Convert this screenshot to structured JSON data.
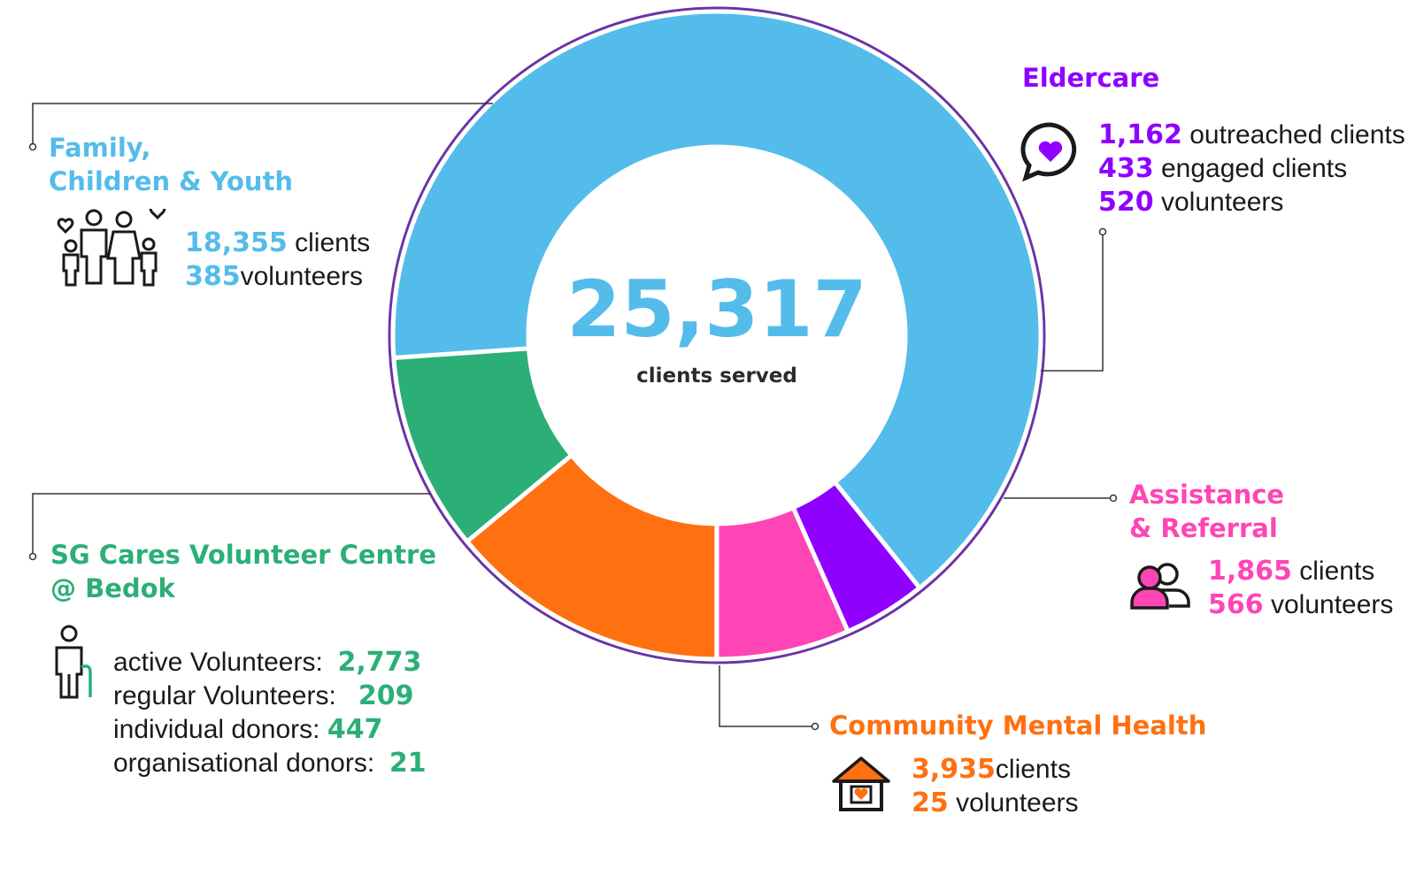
{
  "colors": {
    "family": "#53BCEA",
    "eldercare": "#8F00FF",
    "assistance": "#FF45B5",
    "mental": "#FF7010",
    "sgcares": "#2BAF77",
    "ring": "#6A34A6",
    "leader": "#333333"
  },
  "chart_data": {
    "type": "pie",
    "style": "donut",
    "center": {
      "value": "25,317",
      "label": "clients served"
    },
    "categories": [
      "Family, Children & Youth",
      "Eldercare",
      "Assistance & Referral",
      "Community Mental Health",
      "SG Cares Volunteer Centre @ Bedok"
    ],
    "values": [
      18355,
      1162,
      1865,
      3935,
      2773
    ],
    "colors": [
      "#53BCEA",
      "#8F00FF",
      "#FF45B5",
      "#FF7010",
      "#2BAF77"
    ]
  },
  "segments": {
    "family": {
      "title_line1": "Family,",
      "title_line2": "Children & Youth",
      "clients_num": "18,355",
      "clients_label": "clients",
      "volunteers_num": "385",
      "volunteers_label": "volunteers",
      "icon": "family-icon"
    },
    "eldercare": {
      "title": "Eldercare",
      "outreached_num": "1,162",
      "outreached_label": "outreached clients",
      "engaged_num": "433",
      "engaged_label": "engaged clients",
      "volunteers_num": "520",
      "volunteers_label": "volunteers",
      "icon": "heart-chat-icon"
    },
    "assistance": {
      "title_line1": "Assistance",
      "title_line2": "& Referral",
      "clients_num": "1,865",
      "clients_label": "clients",
      "volunteers_num": "566",
      "volunteers_label": "volunteers",
      "icon": "people-icon"
    },
    "mental": {
      "title": "Community Mental Health",
      "clients_num": "3,935",
      "clients_label": "clients",
      "volunteers_num": "25",
      "volunteers_label": "volunteers",
      "icon": "house-heart-icon"
    },
    "sgcares": {
      "title_line1": "SG Cares Volunteer Centre",
      "title_line2": "@ Bedok",
      "rows": [
        {
          "label": "active Volunteers:",
          "value": "2,773"
        },
        {
          "label": "regular Volunteers:",
          "value": "209"
        },
        {
          "label": "individual donors:",
          "value": "447"
        },
        {
          "label": "organisational donors:",
          "value": "21"
        }
      ],
      "icon": "elderly-person-icon"
    }
  }
}
